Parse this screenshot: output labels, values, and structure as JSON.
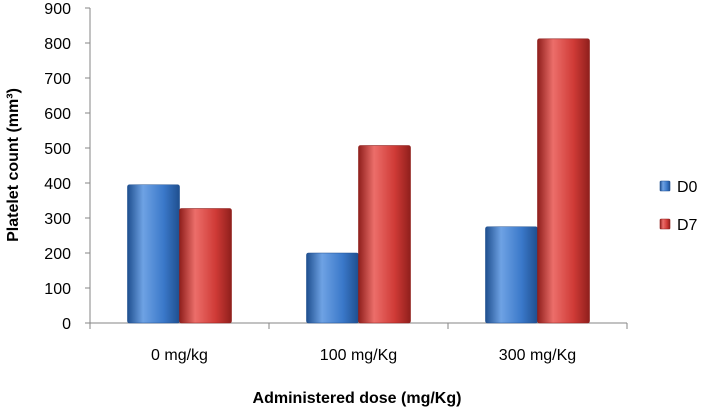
{
  "chart_data": {
    "type": "bar",
    "title": "",
    "xlabel": "Administered dose (mg/Kg)",
    "ylabel": "Platelet count (mm³)",
    "ylim": [
      0,
      900
    ],
    "yticks": [
      0,
      100,
      200,
      300,
      400,
      500,
      600,
      700,
      800,
      900
    ],
    "categories": [
      "0 mg/kg",
      "100 mg/Kg",
      "300 mg/Kg"
    ],
    "series": [
      {
        "name": "D0",
        "values": [
          395,
          200,
          275
        ],
        "color": "#3a78c9",
        "color_light": "#6ea2e4",
        "color_dark": "#1f4f8f"
      },
      {
        "name": "D7",
        "values": [
          327,
          507,
          812
        ],
        "color": "#cf3a36",
        "color_light": "#ec6e6a",
        "color_dark": "#8f1f1c"
      }
    ],
    "grid": false,
    "legend_position": "right"
  }
}
